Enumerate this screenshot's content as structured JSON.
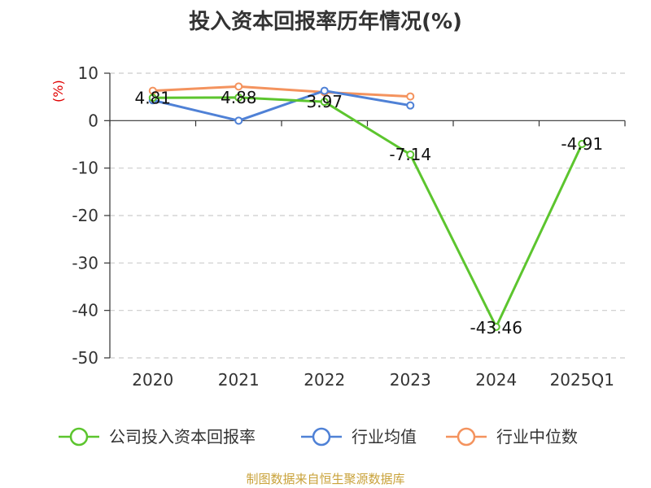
{
  "chart_data": {
    "type": "line",
    "title": "投入资本回报率历年情况(%)",
    "unit_label": "(%)",
    "categories": [
      "2020",
      "2021",
      "2022",
      "2023",
      "2024",
      "2025Q1"
    ],
    "ylim": [
      -50,
      10
    ],
    "yticks": [
      10,
      0,
      -10,
      -20,
      -30,
      -40,
      -50
    ],
    "grid": true,
    "legend_position": "bottom",
    "series": [
      {
        "name": "公司投入资本回报率",
        "color": "#5cc52e",
        "values": [
          4.81,
          4.88,
          3.97,
          -7.14,
          -43.46,
          -4.91
        ],
        "labels": [
          "4.81",
          "4.88",
          "3.97",
          "-7.14",
          "-43.46",
          "-4.91"
        ]
      },
      {
        "name": "行业均值",
        "color": "#4f81d6",
        "values": [
          4.3,
          0.0,
          6.3,
          3.2,
          null,
          null
        ]
      },
      {
        "name": "行业中位数",
        "color": "#f4935e",
        "values": [
          6.3,
          7.2,
          6.0,
          5.1,
          null,
          null
        ]
      }
    ]
  },
  "source": "制图数据来自恒生聚源数据库"
}
